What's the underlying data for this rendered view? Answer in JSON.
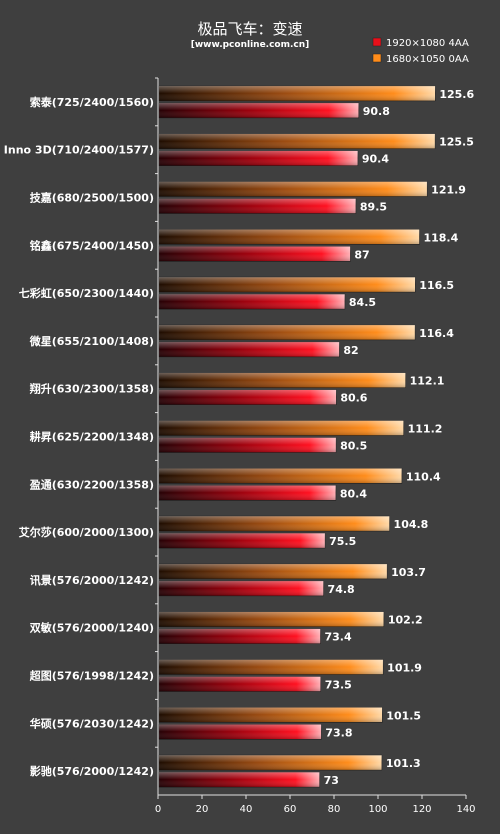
{
  "chart_data": {
    "type": "bar",
    "orientation": "horizontal",
    "title": "极品飞车：变速",
    "subtitle": "[www.pconline.com.cn]",
    "categories": [
      "索泰(725/2400/1560)",
      "Inno 3D(710/2400/1577)",
      "技嘉(680/2500/1500)",
      "铭鑫(675/2400/1450)",
      "七彩虹(650/2300/1440)",
      "微星(655/2100/1408)",
      "翔升(630/2300/1358)",
      "耕昇(625/2200/1348)",
      "盈通(630/2200/1358)",
      "艾尔莎(600/2000/1300)",
      "讯景(576/2000/1242)",
      "双敏(576/2000/1240)",
      "超图(576/1998/1242)",
      "华硕(576/2030/1242)",
      "影驰(576/2000/1242)"
    ],
    "series": [
      {
        "name": "1680×1050 0AA",
        "color": "#ff8c1a",
        "values": [
          125.6,
          125.5,
          121.9,
          118.4,
          116.5,
          116.4,
          112.1,
          111.2,
          110.4,
          104.8,
          103.7,
          102.2,
          101.9,
          101.5,
          101.3
        ]
      },
      {
        "name": "1920×1080 4AA",
        "color": "#e8101a",
        "values": [
          90.8,
          90.4,
          89.5,
          87,
          84.5,
          82,
          80.6,
          80.5,
          80.4,
          75.5,
          74.8,
          73.4,
          73.5,
          73.8,
          73
        ]
      }
    ],
    "legend_order": [
      "1920×1080 4AA",
      "1680×1050 0AA"
    ],
    "legend_position": "top-right",
    "xlim": [
      0,
      140
    ],
    "xticks": [
      0,
      20,
      40,
      60,
      80,
      100,
      120,
      140
    ],
    "xlabel": "",
    "ylabel": "",
    "grid": false
  }
}
